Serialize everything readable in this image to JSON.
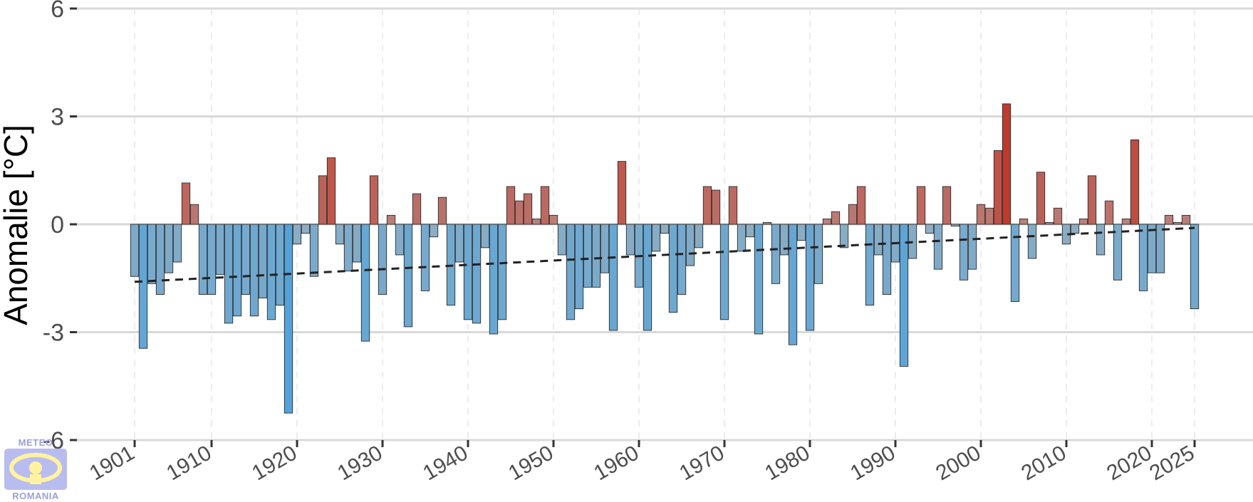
{
  "chart_data": {
    "type": "bar",
    "ylabel": "Anomalie [°C]",
    "ylim": [
      -6,
      6
    ],
    "yticks": [
      6,
      3,
      0,
      -3,
      -6
    ],
    "ytick_labels": [
      "6",
      "3",
      "0",
      "-3",
      "-6"
    ],
    "xlim": [
      1899,
      2031
    ],
    "xticks": [
      1901,
      1910,
      1920,
      1930,
      1940,
      1950,
      1960,
      1970,
      1980,
      1990,
      2000,
      2010,
      2020,
      2025
    ],
    "xtick_labels": [
      "1901",
      "1910",
      "1920",
      "1930",
      "1940",
      "1950",
      "1960",
      "1970",
      "1980",
      "1990",
      "2000",
      "2010",
      "2020",
      "2025"
    ],
    "grid": true,
    "legend": "none",
    "colors": {
      "cold": "#4fa3dd",
      "neutral": "#b3b3b3",
      "warm": "#c0392b",
      "trend": "#222222"
    },
    "series": [
      {
        "x": [
          1901,
          1902,
          1903,
          1904,
          1905,
          1906,
          1907,
          1908,
          1909,
          1910,
          1911,
          1912,
          1913,
          1914,
          1915,
          1916,
          1917,
          1918,
          1919,
          1920,
          1921,
          1922,
          1923,
          1924,
          1925,
          1926,
          1927,
          1928,
          1929,
          1930,
          1931,
          1932,
          1933,
          1934,
          1935,
          1936,
          1937,
          1938,
          1939,
          1940,
          1941,
          1942,
          1943,
          1944,
          1945,
          1946,
          1947,
          1948,
          1949,
          1950,
          1951,
          1952,
          1953,
          1954,
          1955,
          1956,
          1957,
          1958,
          1959,
          1960,
          1961,
          1962,
          1963,
          1964,
          1965,
          1966,
          1967,
          1968,
          1969,
          1970,
          1971,
          1972,
          1973,
          1974,
          1975,
          1976,
          1977,
          1978,
          1979,
          1980,
          1981,
          1982,
          1983,
          1984,
          1985,
          1986,
          1987,
          1988,
          1989,
          1990,
          1991,
          1992,
          1993,
          1994,
          1995,
          1996,
          1997,
          1998,
          1999,
          2000,
          2001,
          2002,
          2003,
          2004,
          2005,
          2006,
          2007,
          2008,
          2009,
          2010,
          2011,
          2012,
          2013,
          2014,
          2015,
          2016,
          2017,
          2018,
          2019,
          2020,
          2021,
          2022,
          2023,
          2024,
          2025
        ],
        "values": [
          -1.45,
          -3.45,
          -1.65,
          -1.95,
          -1.35,
          -1.05,
          1.15,
          0.55,
          -1.95,
          -1.95,
          -1.4,
          -2.75,
          -2.55,
          -1.95,
          -2.55,
          -2.05,
          -2.65,
          -2.25,
          -5.25,
          -0.55,
          -0.25,
          -1.45,
          1.35,
          1.85,
          -0.55,
          -1.3,
          -1.05,
          -3.25,
          1.35,
          -1.95,
          0.25,
          -0.85,
          -2.85,
          0.85,
          -1.85,
          -0.35,
          0.75,
          -2.25,
          -1.05,
          -2.65,
          -2.75,
          -0.65,
          -3.05,
          -2.65,
          1.05,
          0.65,
          0.85,
          0.15,
          1.05,
          0.25,
          -0.85,
          -2.65,
          -2.35,
          -1.75,
          -1.75,
          -1.35,
          -2.95,
          1.75,
          -0.85,
          -1.75,
          -2.95,
          -0.75,
          -0.25,
          -2.45,
          -1.95,
          -1.15,
          -0.65,
          1.05,
          0.95,
          -2.65,
          1.05,
          -0.75,
          -0.35,
          -3.05,
          0.05,
          -1.65,
          -0.85,
          -3.35,
          -0.45,
          -2.95,
          -1.65,
          0.15,
          0.35,
          -0.65,
          0.55,
          1.05,
          -2.25,
          -0.85,
          -1.95,
          -1.05,
          -3.95,
          -0.95,
          1.05,
          -0.25,
          -1.25,
          1.05,
          -0.05,
          -1.55,
          -1.25,
          0.55,
          0.45,
          2.05,
          3.35,
          -2.15,
          0.15,
          -0.95,
          1.45,
          0.05,
          0.45,
          -0.55,
          -0.25,
          0.15,
          1.35,
          -0.85,
          0.65,
          -1.55,
          0.15,
          2.35,
          -1.85,
          -1.35,
          -1.35,
          0.25,
          0.05,
          0.25,
          -2.35
        ]
      }
    ],
    "trend": {
      "style": "dashed",
      "from": [
        1901,
        -1.6
      ],
      "to": [
        2025,
        -0.1
      ]
    }
  },
  "logo": {
    "top_text": "METEO",
    "bottom_text": "ROMANIA"
  }
}
